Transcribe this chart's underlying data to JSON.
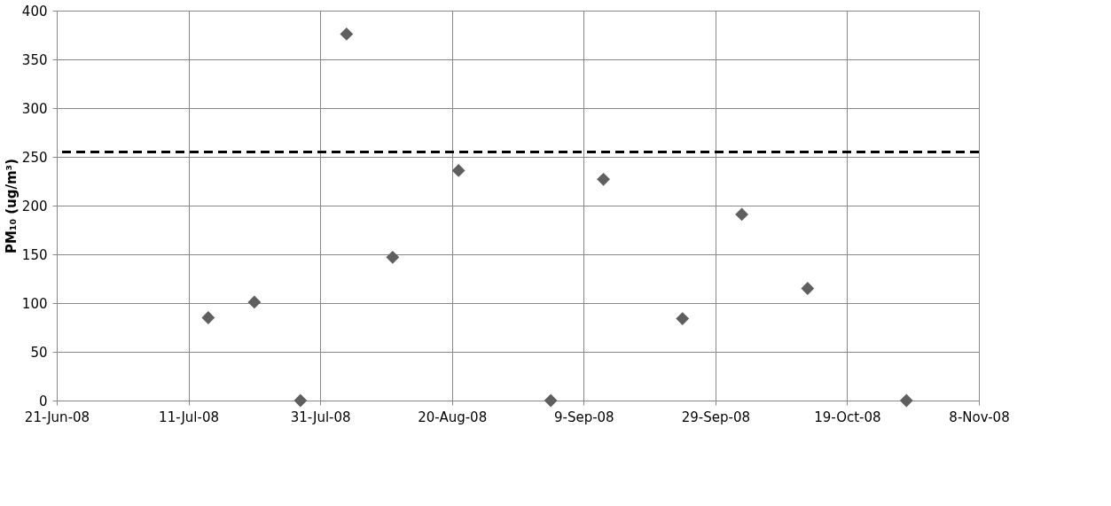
{
  "chart_data": {
    "type": "scatter",
    "ylabel": "PM₁₀ (ug/m³)",
    "x": [
      "2008-07-14",
      "2008-07-21",
      "2008-07-28",
      "2008-08-04",
      "2008-08-11",
      "2008-08-21",
      "2008-09-04",
      "2008-09-12",
      "2008-09-24",
      "2008-10-03",
      "2008-10-13",
      "2008-10-28"
    ],
    "series": [
      {
        "color": "#5f5f5f",
        "values": [
          85,
          101,
          0,
          376,
          147,
          236,
          0,
          227,
          84,
          191,
          115,
          0
        ]
      }
    ],
    "xlim": [
      "2008-06-21",
      "2008-11-08"
    ],
    "xticks": [
      {
        "value": "2008-06-21",
        "label": "21-Jun-08"
      },
      {
        "value": "2008-07-11",
        "label": "11-Jul-08"
      },
      {
        "value": "2008-07-31",
        "label": "31-Jul-08"
      },
      {
        "value": "2008-08-20",
        "label": "20-Aug-08"
      },
      {
        "value": "2008-09-09",
        "label": "9-Sep-08"
      },
      {
        "value": "2008-09-29",
        "label": "29-Sep-08"
      },
      {
        "value": "2008-10-19",
        "label": "19-Oct-08"
      },
      {
        "value": "2008-11-08",
        "label": "8-Nov-08"
      }
    ],
    "ylim": [
      0,
      400
    ],
    "yticks": [
      0,
      50,
      100,
      150,
      200,
      250,
      300,
      350,
      400
    ],
    "ref_lines": [
      {
        "axis": "y",
        "value": 255,
        "color": "#000000",
        "line_style": "dashed"
      }
    ],
    "grid": true,
    "marker": "diamond"
  }
}
